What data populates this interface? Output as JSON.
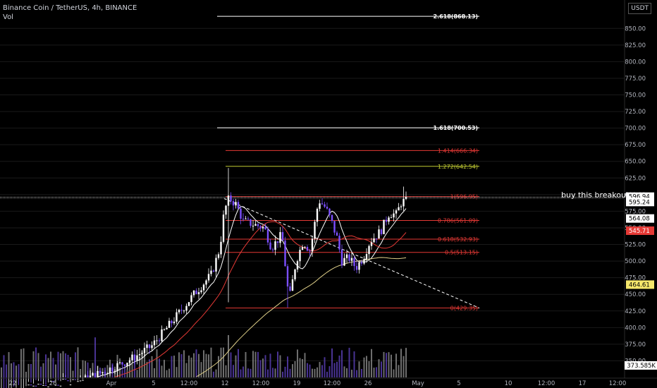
{
  "header": {
    "symbol_line": "Binance Coin / TetherUS, 4h, BINANCE",
    "vol_label": "Vol"
  },
  "currency_button": "USDT",
  "chart_data": {
    "type": "candlestick",
    "ylim": [
      325,
      880
    ],
    "y_ticks": [
      350,
      375,
      400,
      425,
      450,
      475,
      500,
      525,
      550,
      575,
      600,
      625,
      650,
      675,
      700,
      725,
      750,
      775,
      800,
      825,
      850
    ],
    "x_tick_labels": [
      "22",
      "26",
      "Apr",
      "5",
      "12:00",
      "12",
      "12:00",
      "19",
      "12:00",
      "26",
      "May",
      "5",
      "10",
      "12:00",
      "17",
      "12:00"
    ],
    "price_flags": [
      {
        "value": 596.94,
        "label": "596.94",
        "style": "white"
      },
      {
        "value": 595.24,
        "label": "595.24",
        "style": "white-dark"
      },
      {
        "value": 564.08,
        "label": "564.08",
        "style": "white"
      },
      {
        "value": 545.71,
        "label": "545.71",
        "style": "red"
      },
      {
        "value": 464.61,
        "label": "464.61",
        "style": "yellow"
      }
    ],
    "volume_flag": "373.585K",
    "fib_levels": [
      {
        "label": "2.618(868.13)",
        "price": 868.13,
        "color": "#ffffff"
      },
      {
        "label": "1.618(700.53)",
        "price": 700.53,
        "color": "#ffffff"
      },
      {
        "label": "1.414(666.34)",
        "price": 666.34,
        "color": "#e53935"
      },
      {
        "label": "1.272(642.54)",
        "price": 642.54,
        "color": "#c0ca33"
      },
      {
        "label": "1(596.95)",
        "price": 596.95,
        "color": "#e53935"
      },
      {
        "label": "0.786(561.09)",
        "price": 561.09,
        "color": "#e53935"
      },
      {
        "label": "0.618(532.93)",
        "price": 532.93,
        "color": "#e53935"
      },
      {
        "label": "0.5(513.15)",
        "price": 513.15,
        "color": "#e53935"
      },
      {
        "label": "0(429.35)",
        "price": 429.35,
        "color": "#e53935"
      }
    ],
    "annotation": "buy this breakout",
    "colors": {
      "up": "#ffffff",
      "down": "#7b4fff",
      "ma_white": "#ffffff",
      "ma_red": "#e53935",
      "ma_yellow": "#e0d08a",
      "trendline": "#ffffff",
      "grid": "#1a1a1a"
    }
  }
}
